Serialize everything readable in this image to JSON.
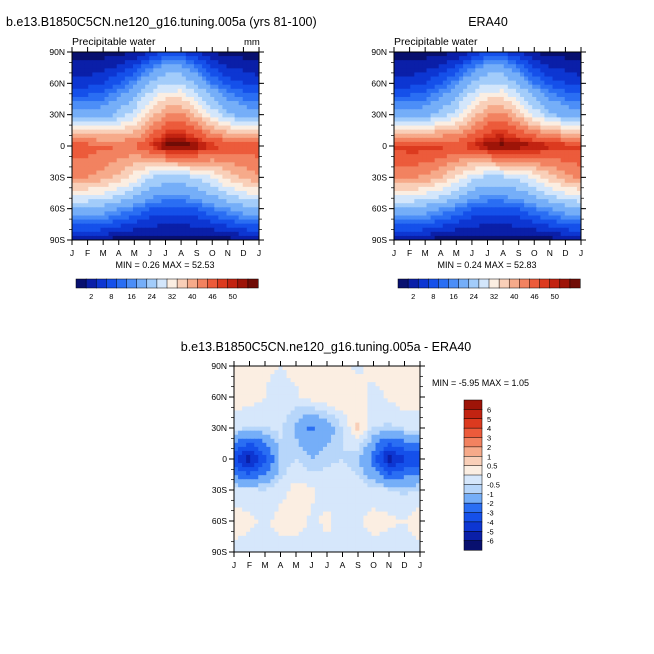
{
  "colors": {
    "abs_scale": [
      "#08106f",
      "#0a1fa8",
      "#0d36d2",
      "#1550ea",
      "#2a6ef3",
      "#4c8ef7",
      "#75aef8",
      "#a2ccfa",
      "#d3e6fb",
      "#fbeee2",
      "#f9cfb8",
      "#f6aa8a",
      "#f28260",
      "#ec5b3b",
      "#dc3a1f",
      "#c22311",
      "#9e1408",
      "#700c06"
    ],
    "diff_scale": [
      "#08106f",
      "#0a1fa8",
      "#0d36d2",
      "#1550ea",
      "#2a6ef3",
      "#75aef8",
      "#b7d6fa",
      "#d6e7fb",
      "#fbeee2",
      "#f9cfb8",
      "#f6aa8a",
      "#f28260",
      "#ec5b3b",
      "#dc3a1f",
      "#c22311",
      "#9e1408"
    ]
  },
  "panels": [
    {
      "title": "b.e13.B1850C5CN.ne120_g16.tuning.005a (yrs 81-100)",
      "subtitle": "Precipitable water",
      "units": "mm",
      "stats": "MIN =   0.26 MAX =  52.53",
      "min": 0.26,
      "max": 52.53
    },
    {
      "title": "ERA40",
      "subtitle": "Precipitable water",
      "units": "",
      "stats": "MIN =   0.24 MAX =  52.83",
      "min": 0.24,
      "max": 52.83
    }
  ],
  "diff_panel": {
    "title": "b.e13.B1850C5CN.ne120_g16.tuning.005a - ERA40",
    "stats": "MIN =  -5.95 MAX =   1.05",
    "min": -5.95,
    "max": 1.05
  },
  "axes": {
    "months": [
      "J",
      "F",
      "M",
      "A",
      "M",
      "J",
      "J",
      "A",
      "S",
      "O",
      "N",
      "D",
      "J"
    ],
    "latitudes": [
      "90N",
      "60N",
      "30N",
      "0",
      "30S",
      "60S",
      "90S"
    ]
  },
  "abs_colorbar_labels": [
    "2",
    "8",
    "16",
    "24",
    "32",
    "40",
    "46",
    "50"
  ],
  "diff_colorbar_labels": [
    "6",
    "5",
    "4",
    "3",
    "2",
    "1",
    "0.5",
    "0",
    "-0.5",
    "-1",
    "-2",
    "-3",
    "-4",
    "-5",
    "-6"
  ],
  "chart_data": [
    {
      "type": "heatmap",
      "title": "b.e13.B1850C5CN.ne120_g16.tuning.005a (yrs 81-100)",
      "subtitle": "Precipitable water",
      "units": "mm",
      "x": [
        "J",
        "F",
        "M",
        "A",
        "M",
        "J",
        "J",
        "A",
        "S",
        "O",
        "N",
        "D",
        "J"
      ],
      "y": [
        "90N",
        "60N",
        "30N",
        "0",
        "30S",
        "60S",
        "90S"
      ],
      "zlim": [
        0.26,
        52.53
      ],
      "contour_levels": [
        2,
        4,
        6,
        8,
        10,
        12,
        16,
        20,
        24,
        28,
        32,
        36,
        40,
        44,
        46,
        48,
        50
      ],
      "values": [
        [
          1,
          1,
          1,
          1,
          2,
          4,
          6,
          6,
          4,
          2,
          1,
          1,
          1
        ],
        [
          5,
          5,
          6,
          8,
          11,
          16,
          20,
          20,
          15,
          10,
          7,
          6,
          5
        ],
        [
          13,
          13,
          14,
          17,
          22,
          30,
          36,
          37,
          31,
          23,
          17,
          14,
          13
        ],
        [
          42,
          42,
          41,
          40,
          40,
          45,
          51,
          52,
          50,
          46,
          44,
          43,
          42
        ],
        [
          36,
          36,
          34,
          31,
          26,
          20,
          18,
          18,
          20,
          24,
          29,
          33,
          36
        ],
        [
          15,
          15,
          14,
          12,
          10,
          8,
          7,
          7,
          8,
          10,
          12,
          14,
          15
        ],
        [
          2,
          2,
          2,
          1,
          1,
          1,
          1,
          1,
          1,
          1,
          1,
          2,
          2
        ]
      ]
    },
    {
      "type": "heatmap",
      "title": "ERA40",
      "subtitle": "Precipitable water",
      "x": [
        "J",
        "F",
        "M",
        "A",
        "M",
        "J",
        "J",
        "A",
        "S",
        "O",
        "N",
        "D",
        "J"
      ],
      "y": [
        "90N",
        "60N",
        "30N",
        "0",
        "30S",
        "60S",
        "90S"
      ],
      "zlim": [
        0.24,
        52.83
      ],
      "contour_levels": [
        2,
        4,
        6,
        8,
        10,
        12,
        16,
        20,
        24,
        28,
        32,
        36,
        40,
        44,
        46,
        48,
        50
      ],
      "values": [
        [
          1,
          1,
          1,
          1,
          2,
          4,
          6,
          6,
          4,
          2,
          1,
          1,
          1
        ],
        [
          5,
          5,
          6,
          8,
          11,
          16,
          20,
          20,
          15,
          10,
          7,
          6,
          5
        ],
        [
          13,
          13,
          14,
          17,
          22,
          30,
          36,
          37,
          31,
          23,
          17,
          14,
          13
        ],
        [
          45,
          46,
          46,
          45,
          44,
          46,
          50,
          51,
          50,
          49,
          47,
          46,
          45
        ],
        [
          37,
          37,
          35,
          32,
          27,
          21,
          19,
          19,
          21,
          25,
          30,
          34,
          37
        ],
        [
          15,
          15,
          14,
          12,
          10,
          8,
          7,
          7,
          8,
          10,
          12,
          14,
          15
        ],
        [
          2,
          2,
          2,
          1,
          1,
          1,
          1,
          1,
          1,
          1,
          1,
          2,
          2
        ]
      ]
    },
    {
      "type": "heatmap",
      "title": "b.e13.B1850C5CN.ne120_g16.tuning.005a - ERA40",
      "x": [
        "J",
        "F",
        "M",
        "A",
        "M",
        "J",
        "J",
        "A",
        "S",
        "O",
        "N",
        "D",
        "J"
      ],
      "y": [
        "90N",
        "60N",
        "30N",
        "0",
        "30S",
        "60S",
        "90S"
      ],
      "zlim": [
        -5.95,
        1.05
      ],
      "contour_levels": [
        -6,
        -5,
        -4,
        -3,
        -2,
        -1,
        -0.5,
        0,
        0.5,
        1,
        2,
        3,
        4,
        5,
        6
      ],
      "values": [
        [
          0.2,
          0.2,
          0.1,
          0,
          0.2,
          0.3,
          0.3,
          0.1,
          -0.1,
          0.2,
          0.2,
          0.2,
          0.2
        ],
        [
          0.2,
          0.3,
          0,
          -0.3,
          -0.1,
          0.3,
          0.5,
          0.5,
          0.2,
          -0.2,
          0.1,
          0.3,
          0.2
        ],
        [
          -0.2,
          -0.6,
          -0.5,
          -0.3,
          -1.2,
          -2.2,
          -1.5,
          -0.5,
          0.6,
          -0.5,
          -0.6,
          -0.4,
          -0.2
        ],
        [
          -4,
          -5.5,
          -3.5,
          -1,
          -0.5,
          -1,
          -0.6,
          -0.5,
          -1,
          -2.5,
          -5.5,
          -4,
          -4
        ],
        [
          -0.4,
          -0.3,
          -0.5,
          -0.2,
          0.2,
          0.1,
          -0.2,
          0,
          -0.1,
          -0.3,
          -0.4,
          -0.6,
          -0.4
        ],
        [
          0.3,
          0.1,
          -0.1,
          0.2,
          0.3,
          -0.1,
          0.1,
          -0.2,
          -0.1,
          0.2,
          0.1,
          0,
          0.3
        ],
        [
          -0.2,
          -0.2,
          -0.1,
          -0.2,
          -0.3,
          -0.2,
          -0.1,
          -0.2,
          -0.2,
          -0.2,
          -0.3,
          -0.2,
          -0.2
        ]
      ]
    }
  ]
}
